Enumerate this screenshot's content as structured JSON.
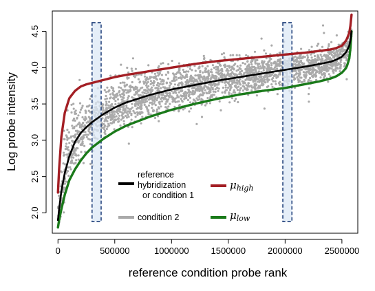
{
  "chart_data": {
    "type": "scatter",
    "xlabel": "reference condition probe rank",
    "ylabel": "Log probe intensity",
    "xlim": [
      -50000,
      2640000
    ],
    "ylim": [
      1.72,
      4.78
    ],
    "x_ticks": [
      0,
      500000,
      1000000,
      1500000,
      2000000,
      2500000
    ],
    "x_tick_labels": [
      "0",
      "500000",
      "1000000",
      "1500000",
      "2000000",
      "2500000"
    ],
    "y_ticks": [
      2.0,
      2.5,
      3.0,
      3.5,
      4.0,
      4.5
    ],
    "y_tick_labels": [
      "2.0",
      "2.5",
      "3.0",
      "3.5",
      "4.0",
      "4.5"
    ],
    "grid": false,
    "legend_position": "bottom-center",
    "series": [
      {
        "key": "reference",
        "name": "reference hybridization or condition 1",
        "legend_lines": [
          "reference",
          "hybridization",
          "or condition 1"
        ],
        "color": "#000000",
        "style": "line",
        "x": [
          0,
          10000,
          30000,
          60000,
          100000,
          150000,
          200000,
          250000,
          300000,
          400000,
          500000,
          600000,
          800000,
          1000000,
          1200000,
          1400000,
          1600000,
          1800000,
          2000000,
          2200000,
          2300000,
          2400000,
          2450000,
          2500000,
          2540000,
          2570000,
          2585000
        ],
        "y": [
          1.9,
          2.05,
          2.3,
          2.55,
          2.78,
          2.98,
          3.1,
          3.18,
          3.25,
          3.36,
          3.45,
          3.52,
          3.62,
          3.7,
          3.76,
          3.82,
          3.87,
          3.92,
          3.97,
          4.02,
          4.05,
          4.08,
          4.11,
          4.15,
          4.22,
          4.32,
          4.5
        ]
      },
      {
        "key": "condition2",
        "name": "condition 2",
        "color": "#aaaaaa",
        "style": "points",
        "spread_note_free": true,
        "band_upper": [
          2.2,
          2.45,
          2.9,
          3.25,
          3.5,
          3.65,
          3.75,
          3.82,
          3.88,
          3.96,
          4.02,
          4.06,
          4.12,
          4.16,
          4.19,
          4.22,
          4.25,
          4.28,
          4.31,
          4.34,
          4.36,
          4.38,
          4.4,
          4.43,
          4.48,
          4.55,
          4.7
        ],
        "band_lower": [
          1.72,
          1.78,
          1.85,
          2.0,
          2.2,
          2.4,
          2.55,
          2.68,
          2.78,
          2.92,
          3.02,
          3.1,
          3.2,
          3.28,
          3.35,
          3.42,
          3.48,
          3.53,
          3.6,
          3.68,
          3.72,
          3.77,
          3.8,
          3.85,
          3.95,
          4.1,
          4.4
        ]
      },
      {
        "key": "mu_high",
        "name": "μhigh",
        "label_base": "μ",
        "label_sub": "high",
        "color": "#a31e24",
        "style": "line",
        "x": [
          0,
          10000,
          30000,
          60000,
          100000,
          150000,
          200000,
          250000,
          300000,
          400000,
          500000,
          600000,
          800000,
          1000000,
          1200000,
          1400000,
          1600000,
          1800000,
          2000000,
          2200000,
          2300000,
          2400000,
          2450000,
          2500000,
          2540000,
          2570000,
          2585000
        ],
        "y": [
          2.28,
          2.6,
          3.05,
          3.38,
          3.58,
          3.68,
          3.74,
          3.77,
          3.79,
          3.83,
          3.87,
          3.9,
          3.95,
          4.0,
          4.05,
          4.09,
          4.12,
          4.15,
          4.18,
          4.21,
          4.23,
          4.25,
          4.27,
          4.3,
          4.38,
          4.5,
          4.73
        ]
      },
      {
        "key": "mu_low",
        "name": "μlow",
        "label_base": "μ",
        "label_sub": "low",
        "color": "#1a7a1a",
        "style": "line",
        "x": [
          0,
          10000,
          30000,
          60000,
          100000,
          150000,
          200000,
          250000,
          300000,
          400000,
          500000,
          600000,
          800000,
          1000000,
          1200000,
          1400000,
          1600000,
          1800000,
          2000000,
          2200000,
          2300000,
          2400000,
          2450000,
          2500000,
          2540000,
          2570000,
          2585000
        ],
        "y": [
          1.8,
          1.9,
          2.05,
          2.25,
          2.45,
          2.6,
          2.72,
          2.82,
          2.9,
          3.02,
          3.12,
          3.2,
          3.32,
          3.42,
          3.5,
          3.57,
          3.63,
          3.68,
          3.72,
          3.78,
          3.81,
          3.85,
          3.88,
          3.93,
          4.0,
          4.15,
          4.5
        ]
      }
    ],
    "highlight_boxes": [
      {
        "x_range": [
          300000,
          380000
        ],
        "y_range": [
          1.88,
          4.62
        ],
        "color": "#1f3f7a"
      },
      {
        "x_range": [
          1980000,
          2060000
        ],
        "y_range": [
          1.88,
          4.62
        ],
        "color": "#1f3f7a"
      }
    ]
  }
}
